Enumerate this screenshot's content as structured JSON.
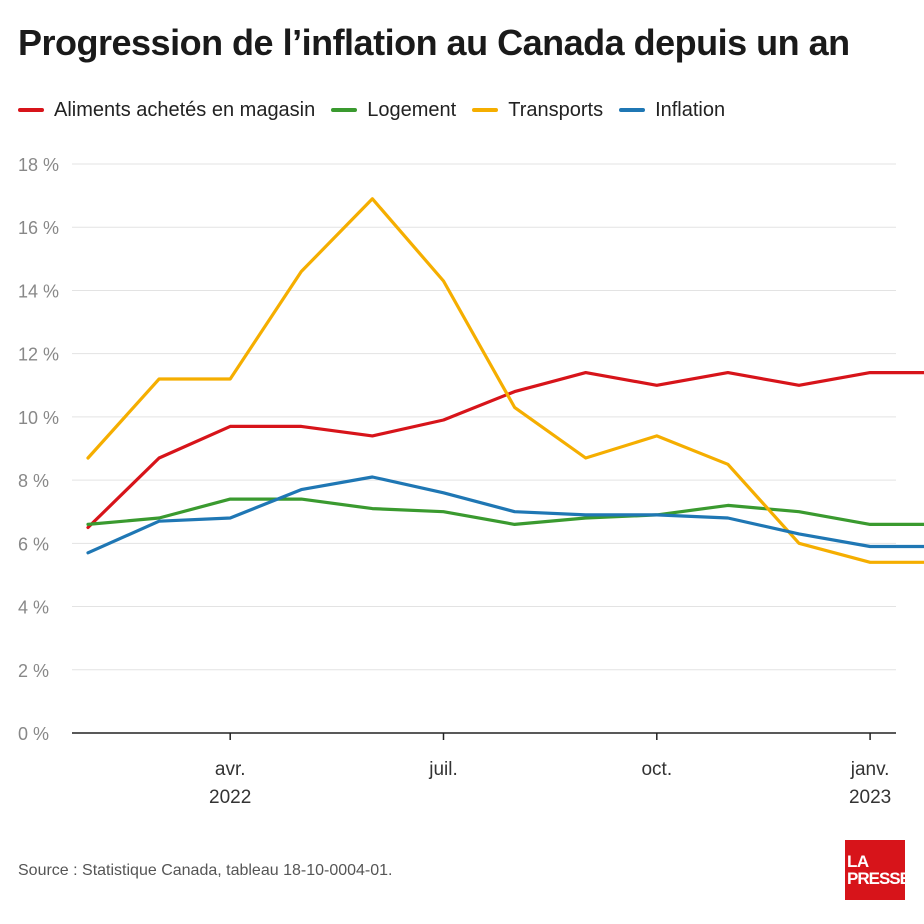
{
  "title": "Progression de l’inflation au Canada depuis un an",
  "source": "Source : Statistique Canada, tableau 18-10-0004-01.",
  "logo": {
    "line1": "LA",
    "line2": "PRESSE"
  },
  "chart_data": {
    "type": "line",
    "title": "Progression de l’inflation au Canada depuis un an",
    "xlabel": "",
    "ylabel": "",
    "ylim": [
      0,
      18
    ],
    "yticks": [
      0,
      2,
      4,
      6,
      8,
      10,
      12,
      14,
      16,
      18
    ],
    "ytick_suffix": " %",
    "grid": true,
    "legend_position": "top-left",
    "x": [
      "2022-01",
      "2022-02",
      "2022-03",
      "2022-04",
      "2022-05",
      "2022-06",
      "2022-07",
      "2022-08",
      "2022-09",
      "2022-10",
      "2022-11",
      "2022-12",
      "2023-01"
    ],
    "xtick_labels": [
      {
        "x": "2022-03",
        "line1": "avr.",
        "line2": "2022"
      },
      {
        "x": "2022-06",
        "line1": "juil.",
        "line2": ""
      },
      {
        "x": "2022-09",
        "line1": "oct.",
        "line2": ""
      },
      {
        "x": "2022-12",
        "line1": "janv.",
        "line2": "2023"
      }
    ],
    "series": [
      {
        "name": "Aliments achetés en magasin",
        "color": "#d7141a",
        "values": [
          6.5,
          8.7,
          9.7,
          9.7,
          9.4,
          9.9,
          10.8,
          11.4,
          11.0,
          11.4,
          11.0,
          11.4,
          11.4
        ]
      },
      {
        "name": "Logement",
        "color": "#3a9a2f",
        "values": [
          6.6,
          6.8,
          7.4,
          7.4,
          7.1,
          7.0,
          6.6,
          6.8,
          6.9,
          7.2,
          7.0,
          6.6,
          6.6
        ]
      },
      {
        "name": "Transports",
        "color": "#f5ae00",
        "values": [
          8.7,
          11.2,
          11.2,
          14.6,
          16.9,
          14.3,
          10.3,
          8.7,
          9.4,
          8.5,
          6.0,
          5.4,
          5.4
        ]
      },
      {
        "name": "Inflation",
        "color": "#1f77b4",
        "values": [
          5.7,
          6.7,
          6.8,
          7.7,
          8.1,
          7.6,
          7.0,
          6.9,
          6.9,
          6.8,
          6.3,
          5.9,
          5.9
        ]
      }
    ]
  }
}
